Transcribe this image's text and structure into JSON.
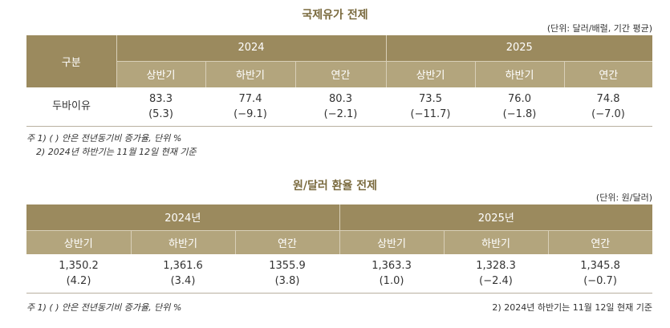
{
  "oil": {
    "title": "국제유가 전제",
    "unit": "(단위: 달러/배럴, 기간 평균)",
    "row_header": "구분",
    "years": [
      "2024",
      "2025"
    ],
    "periods": [
      "상반기",
      "하반기",
      "연간",
      "상반기",
      "하반기",
      "연간"
    ],
    "row_label": "두바이유",
    "values": [
      "83.3",
      "77.4",
      "80.3",
      "73.5",
      "76.0",
      "74.8"
    ],
    "changes": [
      "(5.3)",
      "(−9.1)",
      "(−2.1)",
      "(−11.7)",
      "(−1.8)",
      "(−7.0)"
    ],
    "note1": "주 1) ( ) 안은 전년동기비 증가율, 단위 %",
    "note2": "2) 2024년 하반기는 11월 12일 현재 기준"
  },
  "fx": {
    "title": "원/달러 환율 전제",
    "unit": "(단위: 원/달러)",
    "years": [
      "2024년",
      "2025년"
    ],
    "periods": [
      "상반기",
      "하반기",
      "연간",
      "상반기",
      "하반기",
      "연간"
    ],
    "values": [
      "1,350.2",
      "1,361.6",
      "1355.9",
      "1,363.3",
      "1,328.3",
      "1,345.8"
    ],
    "changes": [
      "(4.2)",
      "(3.4)",
      "(3.8)",
      "(1.0)",
      "(−2.4)",
      "(−0.7)"
    ],
    "note1": "주 1) ( ) 안은 전년동기비 증가율, 단위 %",
    "note2": "2) 2024년 하반기는 11월 12일 현재 기준"
  }
}
